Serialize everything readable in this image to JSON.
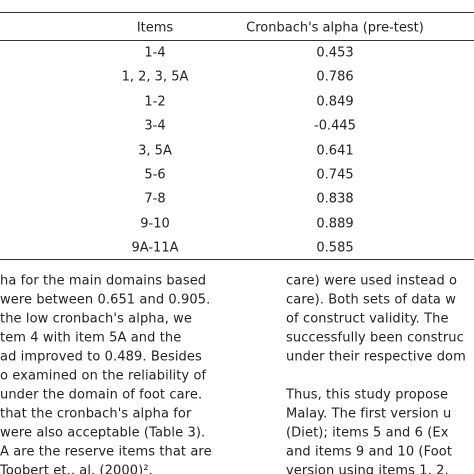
{
  "table": {
    "header": [
      "Items",
      "Cronbach's alpha (pre-test)"
    ],
    "rows": [
      [
        "1-4",
        "0.453"
      ],
      [
        "1, 2, 3, 5A",
        "0.786"
      ],
      [
        "1-2",
        "0.849"
      ],
      [
        "3-4",
        "-0.445"
      ],
      [
        "3, 5A",
        "0.641"
      ],
      [
        "5-6",
        "0.745"
      ],
      [
        "7-8",
        "0.838"
      ],
      [
        "9-10",
        "0.889"
      ],
      [
        "9A-11A",
        "0.585"
      ]
    ]
  },
  "left_column": [
    "ha for the main domains based",
    "were between 0.651 and 0.905.",
    "the low cronbach's alpha, we",
    "tem 4 with item 5A and the",
    "ad improved to 0.489. Besides",
    "o examined on the reliability of",
    "under the domain of foot care.",
    "that the cronbach's alpha for",
    "were also acceptable (Table 3).",
    "A are the reserve items that are",
    "Toobert et., al. (2000)²."
  ],
  "right_column": [
    [
      "care) were used instead o",
      "care). Both sets of data w",
      "of construct validity. The",
      "successfully been construc",
      "under their respective dom"
    ],
    [
      "Thus, this study propose",
      "Malay. The first version u",
      "(Diet); items 5 and 6 (Ex",
      "and items 9 and 10 (Foot",
      "version using items 1, 2,"
    ]
  ]
}
